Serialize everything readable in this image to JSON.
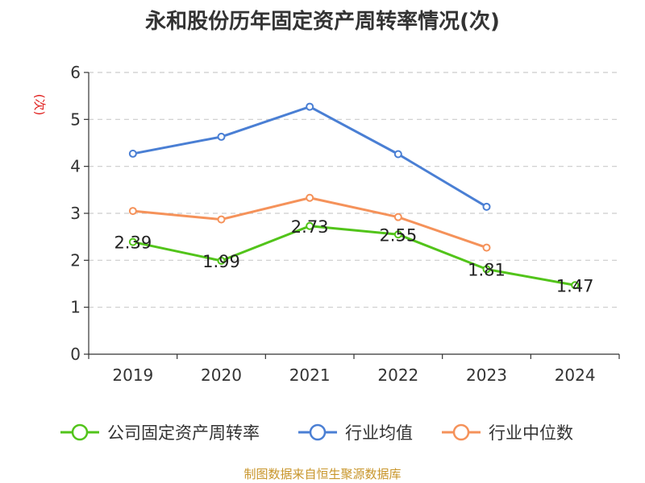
{
  "chart_data": {
    "type": "line",
    "title": "永和股份历年固定资产周转率情况(次)",
    "ylabel": "(次)",
    "categories": [
      "2019",
      "2020",
      "2021",
      "2022",
      "2023",
      "2024"
    ],
    "ylim": [
      0,
      6
    ],
    "yticks": [
      "0",
      "1",
      "2",
      "3",
      "4",
      "5",
      "6"
    ],
    "grid": true,
    "legend_position": "bottom",
    "series": [
      {
        "name": "公司固定资产周转率",
        "color": "#52c41a",
        "values": [
          2.39,
          1.99,
          2.73,
          2.55,
          1.81,
          1.47
        ],
        "labels": [
          "2.39",
          "1.99",
          "2.73",
          "2.55",
          "1.81",
          "1.47"
        ]
      },
      {
        "name": "行业均值",
        "color": "#4a7fd4",
        "values": [
          4.27,
          4.63,
          5.27,
          4.26,
          3.14,
          null
        ]
      },
      {
        "name": "行业中位数",
        "color": "#f5925a",
        "values": [
          3.05,
          2.87,
          3.33,
          2.92,
          2.27,
          null
        ]
      }
    ]
  },
  "footer": "制图数据来自恒生聚源数据库"
}
